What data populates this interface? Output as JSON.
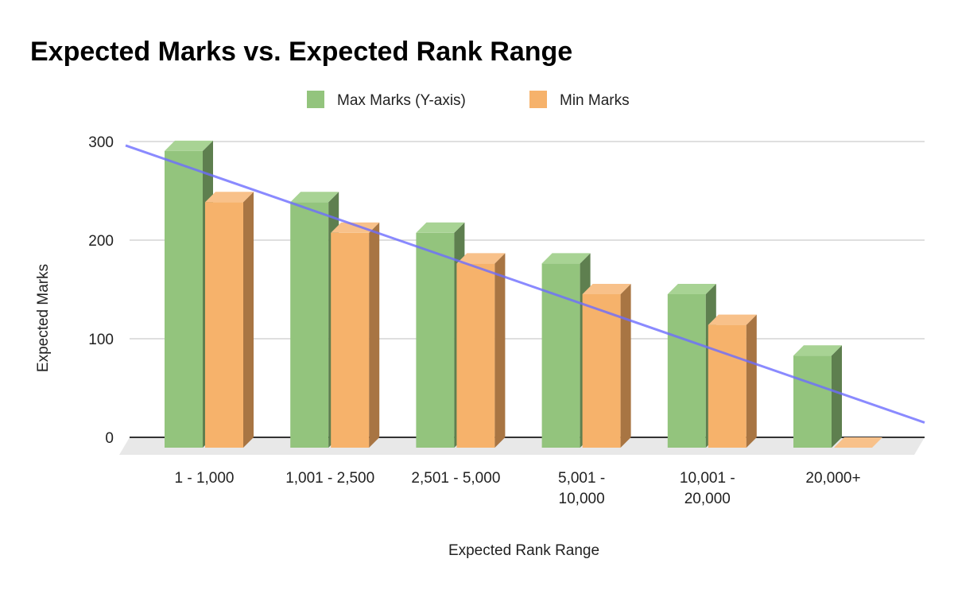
{
  "chart_data": {
    "type": "bar",
    "title": "Expected Marks vs. Expected Rank Range",
    "xlabel": "Expected Rank Range",
    "ylabel": "Expected Marks",
    "categories": [
      "1 - 1,000",
      "1,001 - 2,500",
      "2,501 - 5,000",
      "5,001 - 10,000",
      "10,001 - 20,000",
      "20,000+"
    ],
    "category_lines": [
      [
        "1 - 1,000"
      ],
      [
        "1,001 - 2,500"
      ],
      [
        "2,501 - 5,000"
      ],
      [
        "5,001 -",
        "10,000"
      ],
      [
        "10,001 -",
        "20,000"
      ],
      [
        "20,000+"
      ]
    ],
    "series": [
      {
        "name": "Max Marks (Y-axis)",
        "values": [
          290,
          240,
          210,
          180,
          150,
          90
        ],
        "color": "#93c47d"
      },
      {
        "name": "Min Marks",
        "values": [
          240,
          210,
          180,
          150,
          120,
          0
        ],
        "color": "#f6b26b"
      }
    ],
    "trendline": {
      "color": "#6d6dff",
      "start": 296,
      "end": 15
    },
    "ylim": [
      0,
      300
    ],
    "yticks": [
      "0",
      "100",
      "200",
      "300"
    ],
    "grid": true,
    "legend": "top",
    "style": "3d"
  }
}
